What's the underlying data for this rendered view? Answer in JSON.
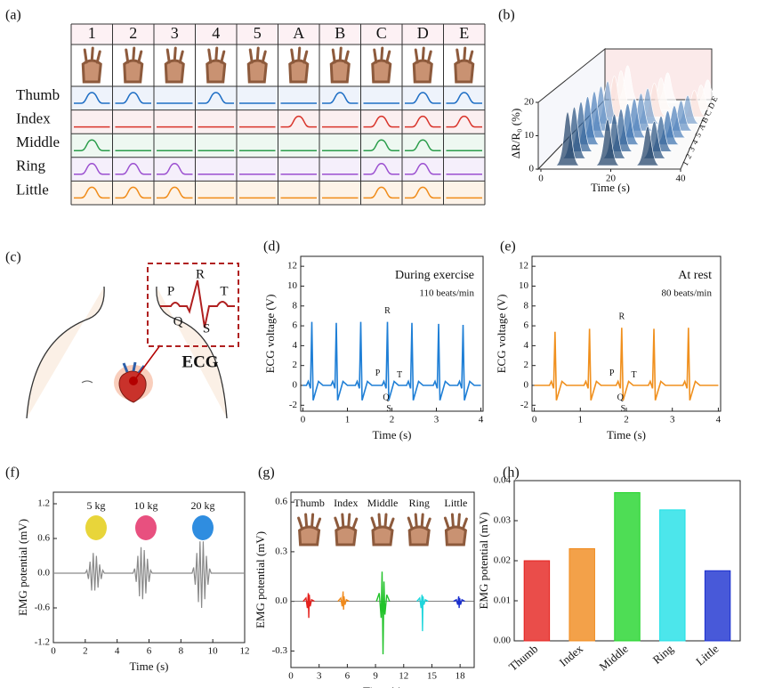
{
  "panel_labels": [
    "(a)",
    "(b)",
    "(c)",
    "(d)",
    "(e)",
    "(f)",
    "(g)",
    "(h)"
  ],
  "gesture_table": {
    "columns": [
      "1",
      "2",
      "3",
      "4",
      "5",
      "A",
      "B",
      "C",
      "D",
      "E"
    ],
    "rows": [
      "Thumb",
      "Index",
      "Middle",
      "Ring",
      "Little"
    ],
    "active": [
      [
        true,
        true,
        false,
        true,
        false,
        false,
        true,
        false,
        true,
        true
      ],
      [
        false,
        false,
        false,
        false,
        false,
        true,
        false,
        true,
        true,
        true
      ],
      [
        true,
        false,
        false,
        false,
        false,
        false,
        false,
        true,
        true,
        false
      ],
      [
        true,
        true,
        true,
        false,
        false,
        false,
        false,
        true,
        true,
        false
      ],
      [
        true,
        true,
        true,
        false,
        false,
        false,
        false,
        true,
        true,
        false
      ]
    ]
  },
  "ecg_diagram": {
    "labels": [
      "P",
      "R",
      "T",
      "Q",
      "S"
    ],
    "caption": "ECG"
  },
  "chart_data": [
    {
      "type": "waterfall",
      "ylabel": "ΔR/R₀ (%)",
      "xlabel": "Time (s)",
      "ylim": [
        0,
        20
      ],
      "yticks": [
        0,
        10,
        20
      ],
      "xlim": [
        0,
        40
      ],
      "xticks": [
        0,
        20,
        40
      ],
      "categories": [
        "1",
        "2",
        "3",
        "4",
        "5",
        "A",
        "B",
        "C",
        "D",
        "E"
      ]
    },
    {
      "type": "line",
      "xlabel": "Time (s)",
      "ylabel": "ECG voltage (V)",
      "color": "#1f7fd6",
      "annotations": [
        "During exercise",
        "110 beats/min"
      ],
      "peak_labels": [
        "P",
        "Q",
        "R",
        "S",
        "T"
      ],
      "xlim": [
        -0.05,
        4.05
      ],
      "ylim": [
        -2.6,
        13
      ],
      "xticks": [
        0,
        1,
        2,
        3,
        4
      ],
      "yticks": [
        -2,
        0,
        2,
        4,
        6,
        8,
        10,
        12
      ],
      "x": [
        0,
        0.08,
        0.12,
        0.17,
        0.2,
        0.23,
        0.35,
        0.45,
        0.63,
        0.67,
        0.72,
        0.75,
        0.78,
        0.9,
        1.0,
        1.18,
        1.22,
        1.27,
        1.3,
        1.33,
        1.45,
        1.55,
        1.78,
        1.82,
        1.87,
        1.9,
        1.93,
        2.05,
        2.15,
        2.33,
        2.37,
        2.42,
        2.45,
        2.48,
        2.6,
        2.7,
        2.93,
        2.97,
        3.02,
        3.05,
        3.08,
        3.2,
        3.3,
        3.48,
        3.52,
        3.57,
        3.6,
        3.63,
        3.75,
        3.85,
        4.0
      ],
      "values": [
        0,
        0,
        0.4,
        -0.3,
        6.4,
        -1.5,
        0.4,
        0,
        0,
        0.4,
        -0.3,
        6.3,
        -1.5,
        0.4,
        0,
        0,
        0.4,
        -0.3,
        6.4,
        -1.5,
        0.4,
        0,
        0,
        0.4,
        -0.3,
        6.4,
        -1.5,
        0.4,
        0,
        0,
        0.4,
        -0.3,
        6.3,
        -1.5,
        0.4,
        0,
        0,
        0.4,
        -0.3,
        6.2,
        -1.5,
        0.4,
        0,
        0,
        0.4,
        -0.3,
        6.1,
        -1.5,
        0.4,
        0,
        0
      ]
    },
    {
      "type": "line",
      "xlabel": "Time (s)",
      "ylabel": "ECG voltage (V)",
      "color": "#f0901e",
      "annotations": [
        "At rest",
        "80 beats/min"
      ],
      "peak_labels": [
        "P",
        "Q",
        "R",
        "S",
        "T"
      ],
      "xlim": [
        -0.05,
        4.05
      ],
      "ylim": [
        -2.6,
        13
      ],
      "xticks": [
        0,
        1,
        2,
        3,
        4
      ],
      "yticks": [
        -2,
        0,
        2,
        4,
        6,
        8,
        10,
        12
      ],
      "x": [
        0,
        0.33,
        0.37,
        0.42,
        0.45,
        0.48,
        0.6,
        0.7,
        1.08,
        1.12,
        1.17,
        1.2,
        1.23,
        1.35,
        1.45,
        1.78,
        1.82,
        1.87,
        1.9,
        1.93,
        2.05,
        2.15,
        2.48,
        2.52,
        2.57,
        2.6,
        2.63,
        2.75,
        2.85,
        3.23,
        3.27,
        3.32,
        3.35,
        3.38,
        3.5,
        3.6,
        4.0
      ],
      "values": [
        0,
        0,
        0.4,
        -0.3,
        5.4,
        -1.5,
        0.4,
        0,
        0,
        0.4,
        -0.3,
        5.7,
        -1.5,
        0.4,
        0,
        0,
        0.4,
        -0.3,
        5.8,
        -1.5,
        0.4,
        0,
        0,
        0.4,
        -0.3,
        5.7,
        -1.5,
        0.4,
        0,
        0,
        0.4,
        -0.3,
        5.8,
        -1.5,
        0.4,
        0,
        0
      ]
    },
    {
      "type": "line",
      "xlabel": "Time (s)",
      "ylabel": "EMG potential (mV)",
      "color": "#8a8a8a",
      "annotations": [
        "5 kg",
        "10 kg",
        "20 kg"
      ],
      "xlim": [
        0,
        12
      ],
      "ylim": [
        -1.2,
        1.4
      ],
      "xticks": [
        0,
        2,
        4,
        6,
        8,
        10,
        12
      ],
      "yticks": [
        -1.2,
        -0.6,
        {
          "value": 0,
          "label": "0.0"
        },
        0.6,
        1.2
      ],
      "x": [
        0,
        2.0,
        2.1,
        2.2,
        2.3,
        2.4,
        2.5,
        2.6,
        2.7,
        2.8,
        2.9,
        3.0,
        3.1,
        3.2,
        5.0,
        5.1,
        5.2,
        5.3,
        5.4,
        5.5,
        5.6,
        5.7,
        5.8,
        5.9,
        6.0,
        6.1,
        6.2,
        8.7,
        8.8,
        8.9,
        9.0,
        9.1,
        9.2,
        9.3,
        9.4,
        9.5,
        9.6,
        9.7,
        9.8,
        9.9,
        12
      ],
      "values": [
        0,
        0,
        0.05,
        -0.1,
        0.2,
        -0.3,
        0.35,
        -0.3,
        0.3,
        -0.25,
        0.15,
        -0.1,
        0.05,
        0,
        0,
        0.08,
        -0.15,
        0.3,
        -0.4,
        0.45,
        -0.45,
        0.4,
        -0.35,
        0.25,
        -0.15,
        0.05,
        0,
        0,
        0.1,
        -0.2,
        0.35,
        -0.5,
        0.55,
        -0.6,
        0.55,
        -0.45,
        0.3,
        -0.2,
        0.08,
        0,
        0
      ]
    },
    {
      "type": "multiline",
      "xlabel": "Time (s)",
      "ylabel": "EMG potential (mV)",
      "xlim": [
        0,
        19.5
      ],
      "ylim": [
        -0.4,
        0.66
      ],
      "xticks": [
        0,
        3,
        6,
        9,
        12,
        15,
        18
      ],
      "yticks": [
        -0.3,
        {
          "value": 0,
          "label": "0.0"
        },
        0.3,
        0.6
      ],
      "series": [
        {
          "name": "Thumb",
          "color": "#e5211d",
          "x": [
            1.3,
            1.6,
            1.75,
            1.85,
            1.9,
            1.95,
            2.05,
            2.2,
            2.5
          ],
          "values": [
            0,
            0.02,
            -0.04,
            0.05,
            -0.1,
            0.04,
            -0.03,
            0.01,
            0
          ]
        },
        {
          "name": "Index",
          "color": "#f08a1c",
          "x": [
            5.0,
            5.3,
            5.45,
            5.55,
            5.6,
            5.65,
            5.75,
            5.9,
            6.2
          ],
          "values": [
            0,
            0.02,
            -0.03,
            0.06,
            -0.05,
            0.03,
            -0.02,
            0.01,
            0
          ]
        },
        {
          "name": "Middle",
          "color": "#22c32a",
          "x": [
            9.1,
            9.4,
            9.6,
            9.7,
            9.8,
            9.9,
            10.0,
            10.2,
            10.5
          ],
          "values": [
            0,
            0.05,
            -0.1,
            0.18,
            -0.32,
            0.12,
            -0.08,
            0.04,
            0
          ]
        },
        {
          "name": "Ring",
          "color": "#1fd6dc",
          "x": [
            13.4,
            13.7,
            13.85,
            13.95,
            14.0,
            14.05,
            14.15,
            14.3,
            14.6
          ],
          "values": [
            0,
            0.02,
            -0.04,
            0.04,
            -0.18,
            0.03,
            -0.02,
            0.01,
            0
          ]
        },
        {
          "name": "Little",
          "color": "#1a2fd0",
          "x": [
            17.3,
            17.6,
            17.75,
            17.85,
            17.9,
            17.95,
            18.05,
            18.2,
            18.5
          ],
          "values": [
            0,
            0.01,
            -0.02,
            0.03,
            -0.04,
            0.02,
            -0.02,
            0.01,
            0
          ]
        }
      ]
    },
    {
      "type": "bar",
      "ylabel": "EMG potential (mV)",
      "categories": [
        "Thumb",
        "Index",
        "Middle",
        "Ring",
        "Little"
      ],
      "values": [
        0.02,
        0.023,
        0.037,
        0.0327,
        0.0175
      ],
      "colors": [
        "#e5211d",
        "#f08a1c",
        "#22d42a",
        "#1fe0e6",
        "#1a2fd0"
      ],
      "ylim": [
        0,
        0.04
      ],
      "yticks": [
        {
          "value": 0,
          "label": "0.00"
        },
        0.01,
        0.02,
        0.03,
        0.04
      ]
    }
  ]
}
